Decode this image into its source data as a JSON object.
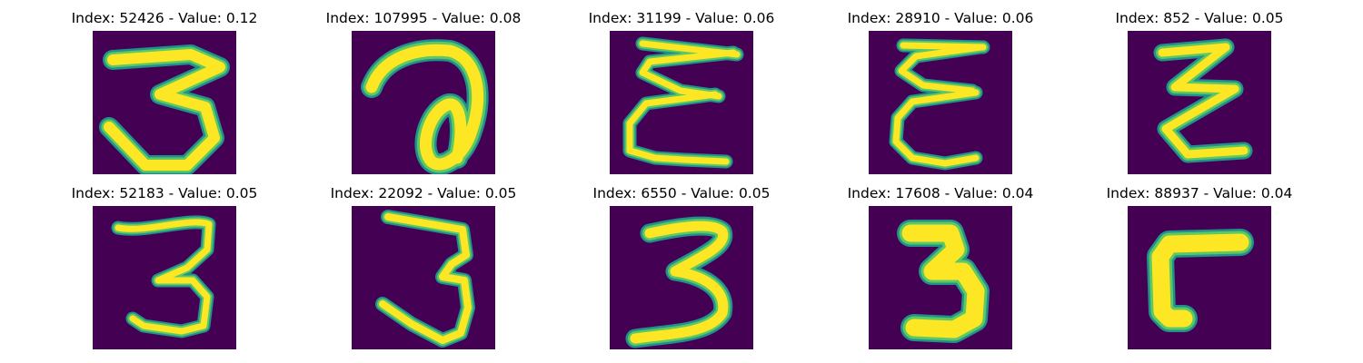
{
  "colors": {
    "background": "#440154",
    "stroke_edge": "#21918c",
    "stroke_mid": "#5ec962",
    "stroke_core": "#fde725"
  },
  "panels": [
    {
      "title": "Index: 52426 - Value: 0.12",
      "digit_shape": "three"
    },
    {
      "title": "Index: 107995 - Value: 0.08",
      "digit_shape": "loop-seven"
    },
    {
      "title": "Index: 31199 - Value: 0.06",
      "digit_shape": "epsilon"
    },
    {
      "title": "Index: 28910 - Value: 0.06",
      "digit_shape": "epsilon"
    },
    {
      "title": "Index: 852 - Value: 0.05",
      "digit_shape": "zigzag"
    },
    {
      "title": "Index: 52183 - Value: 0.05",
      "digit_shape": "three"
    },
    {
      "title": "Index: 22092 - Value: 0.05",
      "digit_shape": "three"
    },
    {
      "title": "Index: 6550 - Value: 0.05",
      "digit_shape": "three"
    },
    {
      "title": "Index: 17608 - Value: 0.04",
      "digit_shape": "bold-three"
    },
    {
      "title": "Index: 88937 - Value: 0.04",
      "digit_shape": "hook"
    }
  ]
}
